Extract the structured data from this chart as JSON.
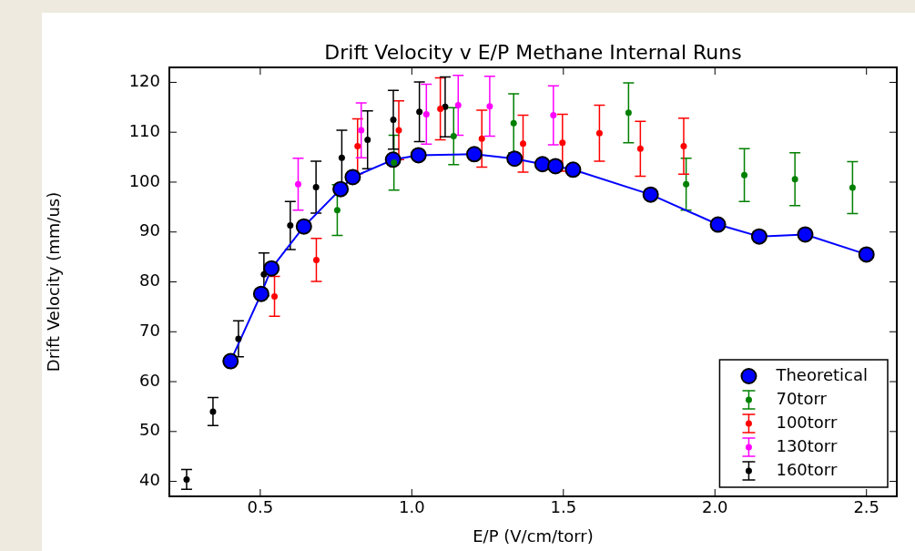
{
  "chart_data": {
    "type": "scatter",
    "title": "Drift Velocity v E/P Methane Internal Runs",
    "xlabel": "E/P (V/cm/torr)",
    "ylabel": "Drift Velocity (mm/us)",
    "xlim": [
      0.2,
      2.6
    ],
    "ylim": [
      37,
      123
    ],
    "xticks": [
      {
        "value": 0.5,
        "label": "0.5"
      },
      {
        "value": 1.0,
        "label": "1.0"
      },
      {
        "value": 1.5,
        "label": "1.5"
      },
      {
        "value": 2.0,
        "label": "2.0"
      },
      {
        "value": 2.5,
        "label": "2.5"
      }
    ],
    "yticks": [
      40,
      50,
      60,
      70,
      80,
      90,
      100,
      110,
      120
    ],
    "grid": false,
    "legend": "bottom right",
    "marker": "circle",
    "series": [
      {
        "name": "Theoretical",
        "type": "line",
        "color": "#0000ff",
        "line_style": "solid",
        "x": [
          0.402,
          0.503,
          0.537,
          0.644,
          0.765,
          0.805,
          0.938,
          1.022,
          1.206,
          1.339,
          1.431,
          1.474,
          1.532,
          1.788,
          2.01,
          2.146,
          2.298,
          2.5
        ],
        "values": [
          64.1,
          77.6,
          82.7,
          91.1,
          98.6,
          101.0,
          104.5,
          105.4,
          105.6,
          104.7,
          103.6,
          103.2,
          102.5,
          97.5,
          91.5,
          89.1,
          89.5,
          85.5
        ]
      },
      {
        "name": "70torr",
        "color": "#008000",
        "x": [
          0.754,
          0.941,
          1.138,
          1.336,
          1.715,
          1.905,
          2.097,
          2.264,
          2.454
        ],
        "values": [
          94.4,
          103.9,
          109.2,
          111.8,
          113.9,
          99.6,
          101.4,
          100.6,
          98.9
        ],
        "errors": [
          5.1,
          5.5,
          5.7,
          5.9,
          6,
          5.2,
          5.3,
          5.3,
          5.2
        ]
      },
      {
        "name": "100torr",
        "color": "#ff0000",
        "x": [
          0.547,
          0.685,
          0.821,
          0.957,
          1.094,
          1.231,
          1.367,
          1.497,
          1.619,
          1.754,
          1.897
        ],
        "values": [
          77.1,
          84.4,
          107.2,
          110.4,
          114.7,
          108.7,
          107.7,
          107.9,
          109.8,
          106.7,
          107.2
        ],
        "errors": [
          4,
          4.3,
          5.5,
          5.9,
          6.2,
          5.7,
          5.7,
          5.7,
          5.6,
          5.5,
          5.6
        ]
      },
      {
        "name": "130torr",
        "color": "#ff00ff",
        "x": [
          0.625,
          0.833,
          1.048,
          1.153,
          1.257,
          1.467
        ],
        "values": [
          99.6,
          110.4,
          113.6,
          115.4,
          115.2,
          113.4
        ],
        "errors": [
          5.2,
          5.5,
          6,
          6,
          6,
          5.9
        ]
      },
      {
        "name": "160torr",
        "color": "#000000",
        "x": [
          0.257,
          0.344,
          0.428,
          0.512,
          0.599,
          0.684,
          0.769,
          0.854,
          0.939,
          1.025,
          1.11
        ],
        "values": [
          40.4,
          54.0,
          68.6,
          81.5,
          91.3,
          99.0,
          104.9,
          108.5,
          112.5,
          114.1,
          115.1
        ],
        "errors": [
          2,
          2.8,
          3.6,
          4.3,
          4.8,
          5.2,
          5.5,
          5.8,
          5.9,
          6,
          6
        ]
      }
    ]
  }
}
